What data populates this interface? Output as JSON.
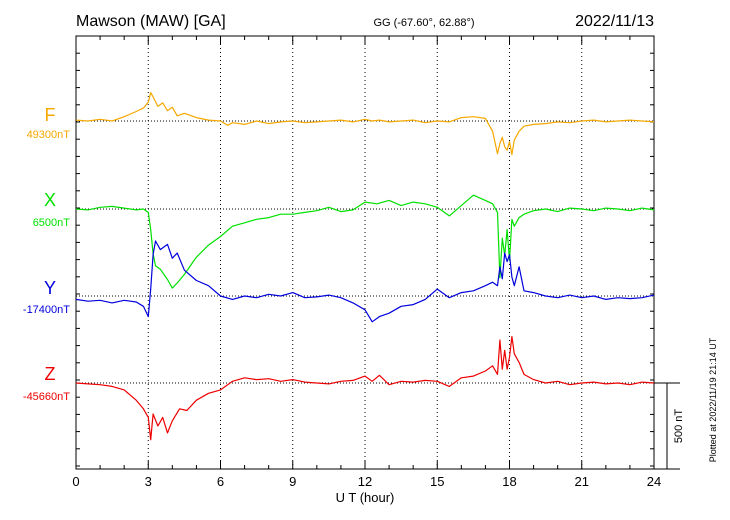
{
  "header": {
    "station": "Mawson (MAW)  [GA]",
    "coords": "GG (-67.60°,  62.88°)",
    "date": "2022/11/13"
  },
  "side_note": "Plotted at 2022/11/19 21:14 UT",
  "chart_data": {
    "type": "line",
    "xlabel": "U T (hour)",
    "xlim": [
      0,
      24
    ],
    "xticks": [
      "0",
      "3",
      "6",
      "9",
      "12",
      "15",
      "18",
      "21",
      "24"
    ],
    "scale_bar": "500 nT",
    "series": [
      {
        "name": "F",
        "baseline": "49300nT",
        "color": "#f5a800",
        "x": [
          0,
          0.5,
          1.0,
          1.5,
          2.0,
          2.5,
          2.8,
          3.0,
          3.1,
          3.2,
          3.4,
          3.6,
          3.8,
          4.0,
          4.2,
          4.5,
          5.0,
          5.5,
          6.0,
          6.3,
          6.5,
          7.0,
          7.5,
          8.0,
          8.5,
          9.0,
          9.5,
          10.0,
          10.5,
          11.0,
          11.5,
          12.0,
          12.3,
          12.6,
          13.0,
          13.5,
          14.0,
          14.5,
          15.0,
          15.5,
          16.0,
          16.5,
          17.0,
          17.3,
          17.5,
          17.6,
          17.7,
          17.8,
          17.9,
          18.0,
          18.1,
          18.2,
          18.4,
          18.6,
          19.0,
          19.5,
          20.0,
          20.5,
          21.0,
          21.5,
          22.0,
          22.5,
          23.0,
          23.5,
          24.0
        ],
        "values": [
          5,
          0,
          10,
          0,
          25,
          55,
          75,
          110,
          165,
          140,
          85,
          105,
          60,
          80,
          30,
          45,
          20,
          5,
          0,
          -25,
          -10,
          -20,
          0,
          -15,
          -5,
          0,
          -10,
          -5,
          0,
          5,
          -5,
          10,
          0,
          5,
          -5,
          0,
          5,
          -10,
          0,
          -5,
          20,
          25,
          15,
          -60,
          -190,
          -130,
          -95,
          -150,
          -170,
          -120,
          -195,
          -110,
          -60,
          -30,
          -20,
          -15,
          -5,
          -10,
          0,
          5,
          -5,
          0,
          5,
          0,
          -5
        ]
      },
      {
        "name": "X",
        "baseline": "6500nT",
        "color": "#00e000",
        "x": [
          0,
          0.5,
          1.0,
          1.5,
          2.0,
          2.5,
          2.8,
          3.0,
          3.1,
          3.2,
          3.3,
          3.5,
          3.8,
          4.0,
          4.2,
          4.5,
          4.8,
          5.0,
          5.5,
          6.0,
          6.5,
          7.0,
          7.5,
          8.0,
          8.5,
          9.0,
          9.5,
          10.0,
          10.5,
          11.0,
          11.5,
          12.0,
          12.5,
          13.0,
          13.5,
          14.0,
          14.5,
          15.0,
          15.5,
          16.0,
          16.5,
          17.0,
          17.3,
          17.5,
          17.6,
          17.7,
          17.8,
          17.9,
          18.0,
          18.1,
          18.2,
          18.4,
          18.6,
          19.0,
          19.5,
          20.0,
          20.5,
          21.0,
          21.5,
          22.0,
          22.5,
          23.0,
          23.5,
          24.0
        ],
        "values": [
          0,
          -5,
          10,
          15,
          5,
          -5,
          0,
          -20,
          -120,
          -260,
          -330,
          -350,
          -410,
          -460,
          -430,
          -380,
          -320,
          -280,
          -210,
          -160,
          -100,
          -80,
          -60,
          -50,
          -30,
          -30,
          -20,
          -10,
          10,
          -15,
          -5,
          40,
          30,
          50,
          20,
          40,
          30,
          10,
          -40,
          20,
          80,
          50,
          30,
          -20,
          -400,
          -170,
          -270,
          -120,
          -300,
          -60,
          -100,
          -50,
          -30,
          -10,
          0,
          -15,
          5,
          0,
          -10,
          5,
          0,
          -10,
          5,
          -5
        ]
      },
      {
        "name": "Y",
        "baseline": "-17400nT",
        "color": "#0000dd",
        "x": [
          0,
          0.5,
          1.0,
          1.5,
          2.0,
          2.5,
          2.8,
          3.0,
          3.1,
          3.2,
          3.3,
          3.5,
          3.8,
          4.0,
          4.2,
          4.5,
          5.0,
          5.5,
          6.0,
          6.5,
          7.0,
          7.5,
          8.0,
          8.5,
          9.0,
          9.5,
          10.0,
          10.5,
          11.0,
          11.5,
          12.0,
          12.3,
          12.6,
          13.0,
          13.5,
          14.0,
          14.5,
          15.0,
          15.5,
          16.0,
          16.5,
          17.0,
          17.3,
          17.5,
          17.6,
          17.7,
          17.8,
          17.9,
          18.0,
          18.1,
          18.2,
          18.4,
          18.6,
          19.0,
          19.5,
          20.0,
          20.5,
          21.0,
          21.5,
          22.0,
          22.5,
          23.0,
          23.5,
          24.0
        ],
        "values": [
          -20,
          -30,
          -25,
          -40,
          -25,
          -35,
          -60,
          -120,
          40,
          240,
          320,
          270,
          300,
          220,
          250,
          150,
          90,
          60,
          0,
          -20,
          0,
          -10,
          10,
          0,
          20,
          -10,
          -5,
          5,
          -10,
          -40,
          -80,
          -150,
          -120,
          -100,
          -60,
          -50,
          -20,
          40,
          -10,
          20,
          30,
          60,
          80,
          60,
          170,
          100,
          250,
          200,
          240,
          110,
          60,
          170,
          30,
          20,
          0,
          -10,
          5,
          -10,
          0,
          -20,
          -10,
          -15,
          -10,
          5
        ]
      },
      {
        "name": "Z",
        "baseline": "-45660nT",
        "color": "#ee0000",
        "x": [
          0,
          0.5,
          1.0,
          1.5,
          2.0,
          2.5,
          2.8,
          3.0,
          3.1,
          3.2,
          3.4,
          3.6,
          3.8,
          4.0,
          4.3,
          4.6,
          5.0,
          5.5,
          6.0,
          6.5,
          7.0,
          7.5,
          8.0,
          8.5,
          9.0,
          9.5,
          10.0,
          10.5,
          11.0,
          11.5,
          12.0,
          12.3,
          12.6,
          13.0,
          13.5,
          14.0,
          14.5,
          15.0,
          15.5,
          16.0,
          16.5,
          17.0,
          17.3,
          17.5,
          17.6,
          17.7,
          17.8,
          17.9,
          18.0,
          18.1,
          18.2,
          18.4,
          18.6,
          19.0,
          19.5,
          20.0,
          20.5,
          21.0,
          21.5,
          22.0,
          22.5,
          23.0,
          23.5,
          24.0
        ],
        "values": [
          0,
          -5,
          -10,
          -20,
          -40,
          -100,
          -150,
          -200,
          -330,
          -180,
          -250,
          -200,
          -290,
          -220,
          -150,
          -160,
          -100,
          -60,
          -40,
          10,
          30,
          20,
          25,
          10,
          20,
          5,
          0,
          -5,
          10,
          15,
          40,
          10,
          45,
          -10,
          10,
          5,
          15,
          10,
          -20,
          30,
          40,
          70,
          100,
          50,
          250,
          80,
          190,
          80,
          150,
          270,
          170,
          120,
          50,
          20,
          0,
          10,
          -10,
          0,
          5,
          -5,
          0,
          -10,
          5,
          0
        ]
      }
    ]
  }
}
